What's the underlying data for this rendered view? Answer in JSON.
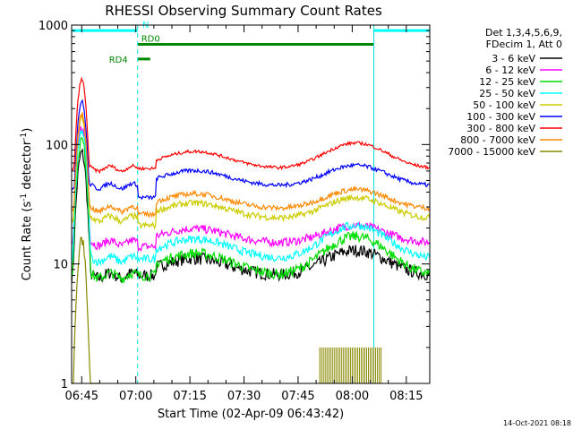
{
  "chart_data": {
    "type": "line",
    "title": "RHESSI Observing Summary Count Rates",
    "xlabel": "Start Time (02-Apr-09 06:43:42)",
    "ylabel_main": "Count Rate (s",
    "ylabel_sup1": "-1",
    "ylabel_mid": " detector",
    "ylabel_sup2": "-1",
    "ylabel_end": ")",
    "y_scale": "log",
    "ylim": [
      1,
      1000
    ],
    "xlim_minutes": [
      -2.8,
      96.5
    ],
    "x_ticks": [
      {
        "t": 0,
        "label": "06:45"
      },
      {
        "t": 15,
        "label": "07:00"
      },
      {
        "t": 30,
        "label": "07:15"
      },
      {
        "t": 45,
        "label": "07:30"
      },
      {
        "t": 60,
        "label": "07:45"
      },
      {
        "t": 75,
        "label": "08:00"
      },
      {
        "t": 90,
        "label": "08:15"
      }
    ],
    "y_ticks": [
      {
        "v": 1,
        "label": "1"
      },
      {
        "v": 10,
        "label": "10"
      },
      {
        "v": 100,
        "label": "100"
      },
      {
        "v": 1000,
        "label": "1000"
      }
    ],
    "legend_header": [
      "Det 1,3,4,5,6,9,",
      "FDecim 1, Att 0"
    ],
    "legend_position": "right of plot",
    "series": [
      {
        "name": "3 - 6 keV",
        "color": "#000000",
        "peak": 85,
        "base": 8,
        "dip": 8,
        "bump": 13,
        "noise": 0.12
      },
      {
        "name": "6 - 12 keV",
        "color": "#ff00ff",
        "peak": 140,
        "base": 15,
        "dip": 14,
        "bump": 21,
        "noise": 0.08
      },
      {
        "name": "12 - 25 keV",
        "color": "#00dd00",
        "peak": 110,
        "base": 8,
        "dip": 8,
        "bump": 17,
        "noise": 0.1
      },
      {
        "name": "25 - 50 keV",
        "color": "#00ffff",
        "peak": 130,
        "base": 11,
        "dip": 11,
        "bump": 21,
        "noise": 0.08
      },
      {
        "name": "50 - 100 keV",
        "color": "#cccc00",
        "peak": 170,
        "base": 24,
        "dip": 21,
        "bump": 36,
        "noise": 0.06
      },
      {
        "name": "100 - 300 keV",
        "color": "#0000ff",
        "peak": 230,
        "base": 45,
        "dip": 36,
        "bump": 67,
        "noise": 0.04
      },
      {
        "name": "300 - 800 keV",
        "color": "#ff0000",
        "peak": 350,
        "base": 63,
        "dip": 63,
        "bump": 103,
        "noise": 0.03
      },
      {
        "name": "800 - 7000 keV",
        "color": "#ff8800",
        "peak": 180,
        "base": 29,
        "dip": 26,
        "bump": 42,
        "noise": 0.05
      },
      {
        "name": "7000 - 15000 keV",
        "color": "#888800",
        "peak": 16,
        "base": 0,
        "dip": 0,
        "bump": 0,
        "noise": 0.1
      }
    ],
    "flags": [
      {
        "label": "N",
        "color": "#00ffff",
        "value_y": 900,
        "segments": [
          [
            -2.8,
            15.5
          ],
          [
            81,
            96.5
          ]
        ]
      },
      {
        "label": "RD0",
        "color": "#008800",
        "value_y": 690,
        "segments": [
          [
            15.5,
            81
          ]
        ]
      },
      {
        "label": "RD4",
        "color": "#008800",
        "value_y": 520,
        "segments": [
          [
            15.5,
            19
          ]
        ]
      }
    ],
    "vertical_markers_minutes": [
      -2.8,
      15.5,
      81,
      96.5
    ],
    "solid_marker_minutes": 81,
    "footer_date": "14-Oct-2021 08:18"
  }
}
